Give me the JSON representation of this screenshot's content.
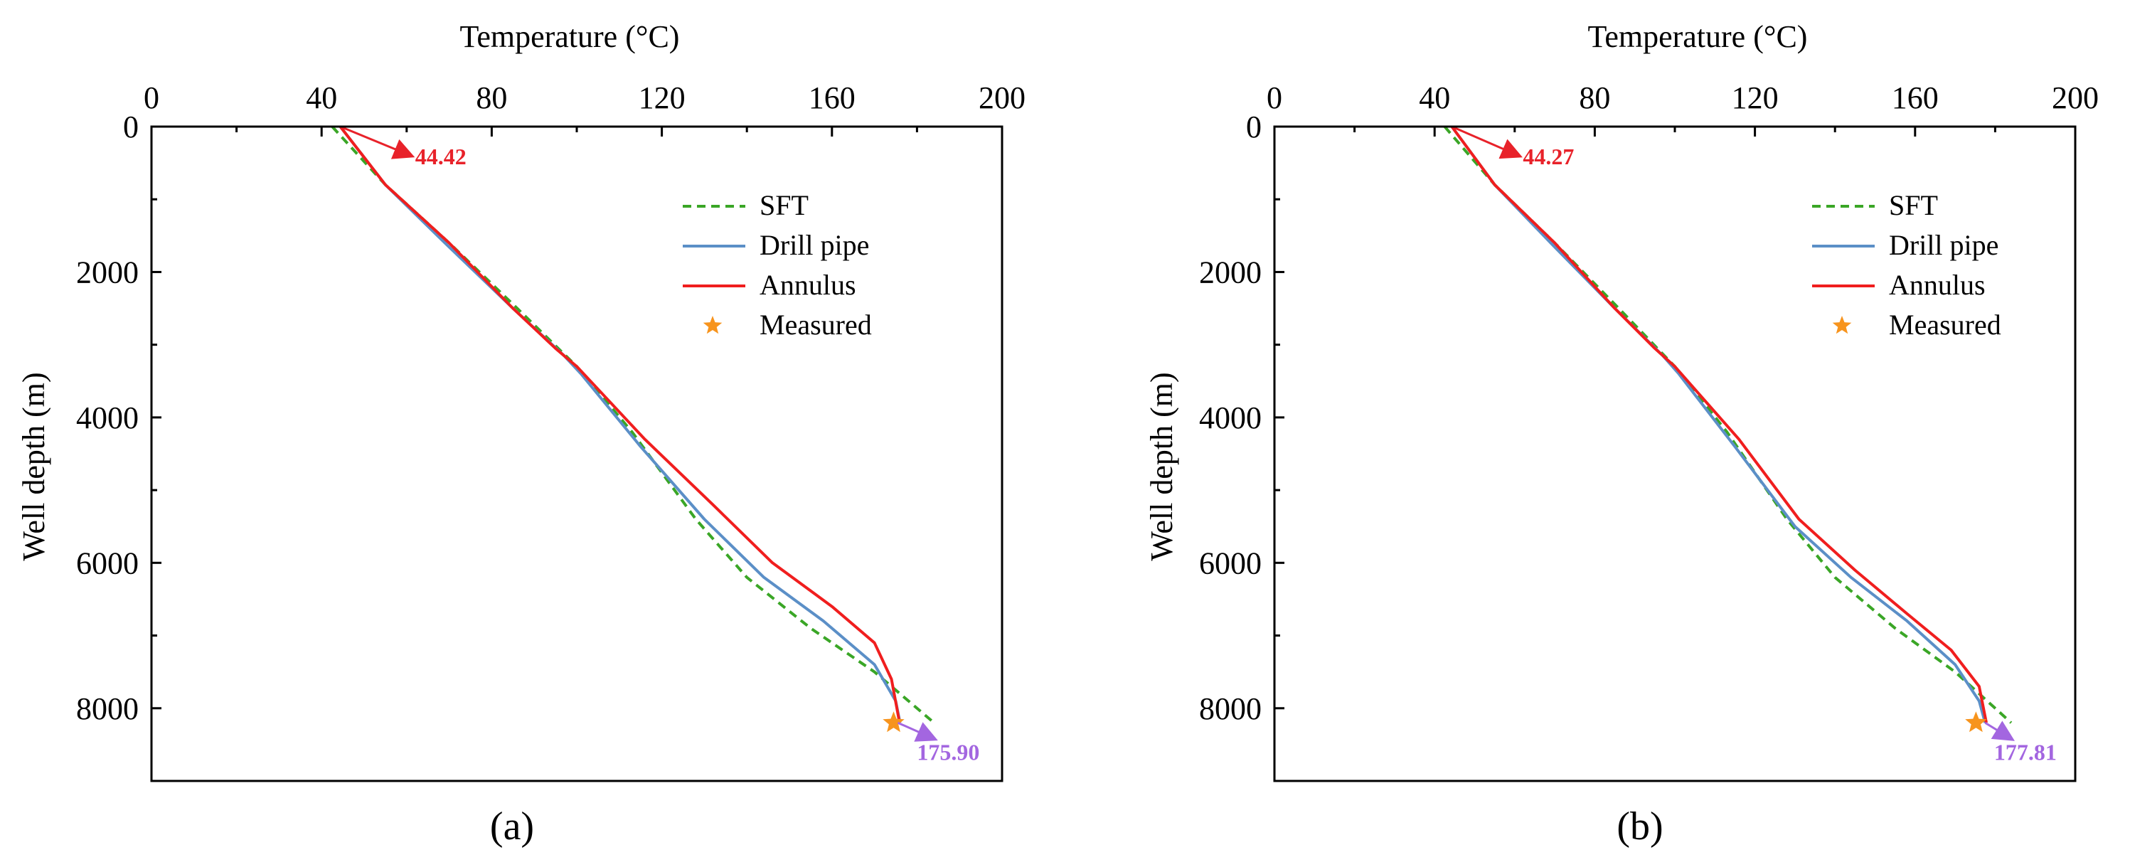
{
  "chart_data": [
    {
      "type": "line",
      "panel_label": "(a)",
      "xlabel": "Temperature (°C)",
      "ylabel": "Well depth (m)",
      "xlim": [
        0,
        200
      ],
      "ylim": [
        9000,
        0
      ],
      "xticks": [
        0,
        40,
        80,
        120,
        160,
        200
      ],
      "yticks": [
        0,
        2000,
        4000,
        6000,
        8000
      ],
      "legend_position": "top-right",
      "series": [
        {
          "name": "SFT",
          "style": "dashed",
          "color": "#3aa626",
          "points": [
            [
              42.5,
              0
            ],
            [
              55,
              800
            ],
            [
              70,
              1600
            ],
            [
              86,
              2500
            ],
            [
              100,
              3300
            ],
            [
              113,
              4200
            ],
            [
              128,
              5400
            ],
            [
              140,
              6200
            ],
            [
              155,
              6900
            ],
            [
              170,
              7500
            ],
            [
              184,
              8200
            ]
          ]
        },
        {
          "name": "Drill pipe",
          "style": "solid",
          "color": "#5b8fc7",
          "points": [
            [
              44.4,
              0
            ],
            [
              55,
              800
            ],
            [
              69,
              1600
            ],
            [
              85,
              2500
            ],
            [
              97,
              3150
            ],
            [
              101,
              3400
            ],
            [
              115,
              4400
            ],
            [
              130,
              5400
            ],
            [
              144,
              6200
            ],
            [
              158,
              6800
            ],
            [
              170,
              7400
            ],
            [
              175,
              7900
            ],
            [
              176,
              8200
            ]
          ]
        },
        {
          "name": "Annulus",
          "style": "solid",
          "color": "#f01e1e",
          "points": [
            [
              44.4,
              0
            ],
            [
              55,
              800
            ],
            [
              70,
              1600
            ],
            [
              85,
              2500
            ],
            [
              95,
              3050
            ],
            [
              100,
              3300
            ],
            [
              116,
              4300
            ],
            [
              132,
              5200
            ],
            [
              146,
              6000
            ],
            [
              160,
              6600
            ],
            [
              170,
              7100
            ],
            [
              174,
              7600
            ],
            [
              175.9,
              8200
            ]
          ]
        },
        {
          "name": "Measured",
          "style": "star",
          "color": "#f7941d",
          "points": [
            [
              174.5,
              8200
            ]
          ]
        }
      ],
      "annotations": [
        {
          "text": "44.42",
          "color": "#e8222a",
          "from": [
            44.4,
            0
          ],
          "to": [
            61,
            400
          ]
        },
        {
          "text": "175.90",
          "color": "#a366e0",
          "from": [
            175.5,
            8200
          ],
          "to": [
            184,
            8420
          ]
        }
      ]
    },
    {
      "type": "line",
      "panel_label": "(b)",
      "xlabel": "Temperature (°C)",
      "ylabel": "Well depth (m)",
      "xlim": [
        0,
        200
      ],
      "ylim": [
        9000,
        0
      ],
      "xticks": [
        0,
        40,
        80,
        120,
        160,
        200
      ],
      "yticks": [
        0,
        2000,
        4000,
        6000,
        8000
      ],
      "legend_position": "top-right",
      "series": [
        {
          "name": "SFT",
          "style": "dashed",
          "color": "#3aa626",
          "points": [
            [
              42.5,
              0
            ],
            [
              55,
              800
            ],
            [
              70,
              1600
            ],
            [
              86,
              2500
            ],
            [
              100,
              3300
            ],
            [
              113,
              4200
            ],
            [
              128,
              5400
            ],
            [
              140,
              6200
            ],
            [
              155,
              6900
            ],
            [
              170,
              7500
            ],
            [
              184,
              8200
            ]
          ]
        },
        {
          "name": "Drill pipe",
          "style": "solid",
          "color": "#5b8fc7",
          "points": [
            [
              44.3,
              0
            ],
            [
              55,
              800
            ],
            [
              69,
              1600
            ],
            [
              85,
              2500
            ],
            [
              97,
              3150
            ],
            [
              101,
              3400
            ],
            [
              115,
              4400
            ],
            [
              130,
              5500
            ],
            [
              144,
              6200
            ],
            [
              158,
              6800
            ],
            [
              170,
              7400
            ],
            [
              176,
              7900
            ],
            [
              177.5,
              8200
            ]
          ]
        },
        {
          "name": "Annulus",
          "style": "solid",
          "color": "#f01e1e",
          "points": [
            [
              44.3,
              0
            ],
            [
              55,
              800
            ],
            [
              70,
              1600
            ],
            [
              85,
              2500
            ],
            [
              95,
              3050
            ],
            [
              100,
              3300
            ],
            [
              116,
              4300
            ],
            [
              131,
              5400
            ],
            [
              145,
              6100
            ],
            [
              158,
              6700
            ],
            [
              169,
              7200
            ],
            [
              176,
              7700
            ],
            [
              177.8,
              8200
            ]
          ]
        },
        {
          "name": "Measured",
          "style": "star",
          "color": "#f7941d",
          "points": [
            [
              175.2,
              8200
            ]
          ]
        }
      ],
      "annotations": [
        {
          "text": "44.27",
          "color": "#e8222a",
          "from": [
            44.3,
            0
          ],
          "to": [
            61,
            400
          ]
        },
        {
          "text": "177.81",
          "color": "#a366e0",
          "from": [
            177.5,
            8200
          ],
          "to": [
            184,
            8420
          ]
        }
      ]
    }
  ]
}
